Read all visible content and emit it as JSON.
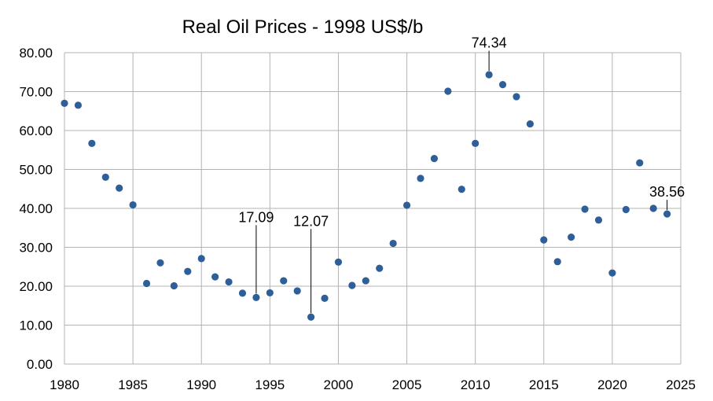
{
  "chart_data": {
    "type": "scatter",
    "title": "Real Oil Prices - 1998 US$/b",
    "xlabel": "",
    "ylabel": "",
    "xlim": [
      1980,
      2025
    ],
    "ylim": [
      0,
      80
    ],
    "x_ticks": [
      1980,
      1985,
      1990,
      1995,
      2000,
      2005,
      2010,
      2015,
      2020,
      2025
    ],
    "y_ticks": [
      "0.00",
      "10.00",
      "20.00",
      "30.00",
      "40.00",
      "50.00",
      "60.00",
      "70.00",
      "80.00"
    ],
    "grid": true,
    "marker_color": "#2f5f98",
    "series": [
      {
        "x": [
          1980,
          1981,
          1982,
          1983,
          1984,
          1985,
          1986,
          1987,
          1988,
          1989,
          1990,
          1991,
          1992,
          1993,
          1994,
          1995,
          1996,
          1997,
          1998,
          1999,
          2000,
          2001,
          2002,
          2003,
          2004,
          2005,
          2006,
          2007,
          2008,
          2009,
          2010,
          2011,
          2012,
          2013,
          2014,
          2015,
          2016,
          2017,
          2018,
          2019,
          2020,
          2021,
          2022,
          2023,
          2024
        ],
        "values": [
          67.0,
          66.5,
          56.7,
          48.0,
          45.2,
          40.9,
          20.7,
          26.0,
          20.1,
          23.8,
          27.1,
          22.4,
          21.1,
          18.2,
          17.09,
          18.3,
          21.4,
          18.8,
          12.07,
          16.9,
          26.2,
          20.2,
          21.4,
          24.6,
          31.0,
          40.8,
          47.7,
          52.8,
          70.1,
          44.9,
          56.7,
          74.34,
          71.8,
          68.7,
          61.7,
          31.9,
          26.3,
          32.6,
          39.8,
          37.0,
          23.4,
          39.7,
          51.7,
          40.0,
          38.56
        ]
      }
    ],
    "annotations": [
      {
        "x": 1994,
        "y": 17.09,
        "label": "17.09"
      },
      {
        "x": 1998,
        "y": 12.07,
        "label": "12.07"
      },
      {
        "x": 2011,
        "y": 74.34,
        "label": "74.34"
      },
      {
        "x": 2024,
        "y": 38.56,
        "label": "38.56"
      }
    ]
  }
}
